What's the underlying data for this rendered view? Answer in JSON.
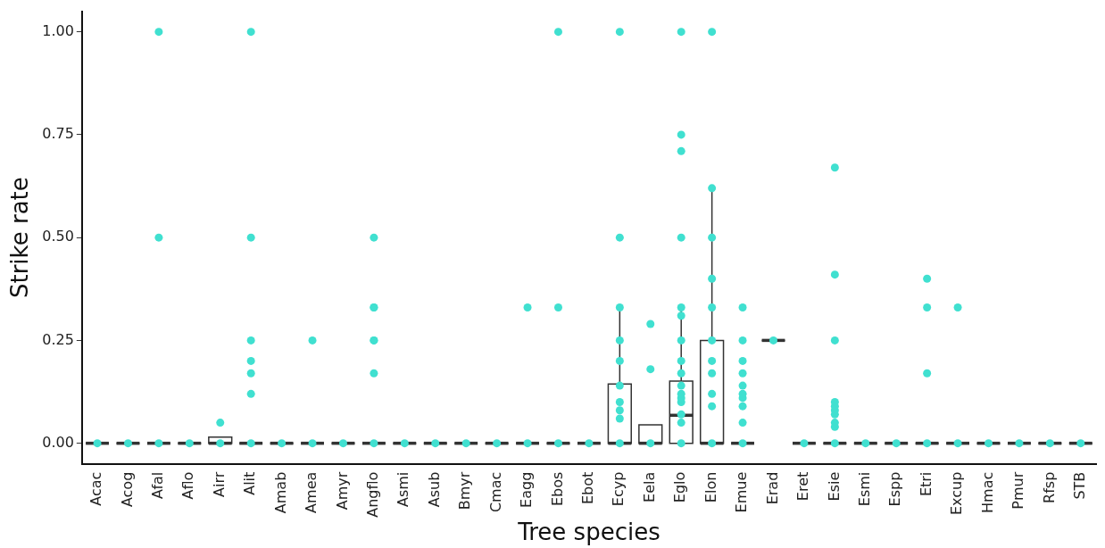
{
  "chart_data": {
    "type": "box",
    "xlabel": "Tree species",
    "ylabel": "Strike rate",
    "categories": [
      "Acac",
      "Acog",
      "Afal",
      "Aflo",
      "Airr",
      "Alit",
      "Amab",
      "Amea",
      "Amyr",
      "Angflo",
      "Asmi",
      "Asub",
      "Bmyr",
      "Cmac",
      "Eagg",
      "Ebos",
      "Ebot",
      "Ecyp",
      "Eela",
      "Eglo",
      "Elon",
      "Emue",
      "Erad",
      "Eret",
      "Esie",
      "Esmi",
      "Espp",
      "Etri",
      "Excup",
      "Hmac",
      "Pmur",
      "Rfsp",
      "STB"
    ],
    "boxes": [
      {
        "low": 0,
        "q1": 0,
        "median": 0,
        "q3": 0,
        "high": 0
      },
      {
        "low": 0,
        "q1": 0,
        "median": 0,
        "q3": 0,
        "high": 0
      },
      {
        "low": 0,
        "q1": 0,
        "median": 0,
        "q3": 0,
        "high": 0
      },
      {
        "low": 0,
        "q1": 0,
        "median": 0,
        "q3": 0,
        "high": 0
      },
      {
        "low": 0,
        "q1": 0,
        "median": 0,
        "q3": 0.015,
        "high": 0.015
      },
      {
        "low": 0,
        "q1": 0,
        "median": 0,
        "q3": 0,
        "high": 0
      },
      {
        "low": 0,
        "q1": 0,
        "median": 0,
        "q3": 0,
        "high": 0
      },
      {
        "low": 0,
        "q1": 0,
        "median": 0,
        "q3": 0,
        "high": 0
      },
      {
        "low": 0,
        "q1": 0,
        "median": 0,
        "q3": 0,
        "high": 0
      },
      {
        "low": 0,
        "q1": 0,
        "median": 0,
        "q3": 0,
        "high": 0
      },
      {
        "low": 0,
        "q1": 0,
        "median": 0,
        "q3": 0,
        "high": 0
      },
      {
        "low": 0,
        "q1": 0,
        "median": 0,
        "q3": 0,
        "high": 0
      },
      {
        "low": 0,
        "q1": 0,
        "median": 0,
        "q3": 0,
        "high": 0
      },
      {
        "low": 0,
        "q1": 0,
        "median": 0,
        "q3": 0,
        "high": 0
      },
      {
        "low": 0,
        "q1": 0,
        "median": 0,
        "q3": 0,
        "high": 0
      },
      {
        "low": 0,
        "q1": 0,
        "median": 0,
        "q3": 0,
        "high": 0
      },
      {
        "low": 0,
        "q1": 0,
        "median": 0,
        "q3": 0,
        "high": 0
      },
      {
        "low": 0,
        "q1": 0,
        "median": 0,
        "q3": 0.144,
        "high": 0.333
      },
      {
        "low": 0,
        "q1": 0,
        "median": 0,
        "q3": 0.045,
        "high": 0.045
      },
      {
        "low": 0,
        "q1": 0,
        "median": 0.068,
        "q3": 0.151,
        "high": 0.333
      },
      {
        "low": 0,
        "q1": 0,
        "median": 0,
        "q3": 0.25,
        "high": 0.625
      },
      {
        "low": 0,
        "q1": 0,
        "median": 0,
        "q3": 0,
        "high": 0
      },
      {
        "low": 0.25,
        "q1": 0.25,
        "median": 0.25,
        "q3": 0.25,
        "high": 0.25
      },
      {
        "low": 0,
        "q1": 0,
        "median": 0,
        "q3": 0,
        "high": 0
      },
      {
        "low": 0,
        "q1": 0,
        "median": 0,
        "q3": 0,
        "high": 0
      },
      {
        "low": 0,
        "q1": 0,
        "median": 0,
        "q3": 0,
        "high": 0
      },
      {
        "low": 0,
        "q1": 0,
        "median": 0,
        "q3": 0,
        "high": 0
      },
      {
        "low": 0,
        "q1": 0,
        "median": 0,
        "q3": 0,
        "high": 0
      },
      {
        "low": 0,
        "q1": 0,
        "median": 0,
        "q3": 0,
        "high": 0
      },
      {
        "low": 0,
        "q1": 0,
        "median": 0,
        "q3": 0,
        "high": 0
      },
      {
        "low": 0,
        "q1": 0,
        "median": 0,
        "q3": 0,
        "high": 0
      },
      {
        "low": 0,
        "q1": 0,
        "median": 0,
        "q3": 0,
        "high": 0
      },
      {
        "low": 0,
        "q1": 0,
        "median": 0,
        "q3": 0,
        "high": 0
      }
    ],
    "series": [
      {
        "type": "scatter",
        "color": "#40e0d0",
        "x": [
          "Acac",
          "Acog",
          "Afal",
          "Afal",
          "Afal",
          "Aflo",
          "Airr",
          "Airr",
          "Alit",
          "Alit",
          "Alit",
          "Alit",
          "Alit",
          "Alit",
          "Alit",
          "Amab",
          "Amea",
          "Amea",
          "Amyr",
          "Angflo",
          "Angflo",
          "Angflo",
          "Angflo",
          "Angflo",
          "Angflo",
          "Angflo",
          "Asmi",
          "Asub",
          "Bmyr",
          "Cmac",
          "Eagg",
          "Eagg",
          "Ebos",
          "Ebos",
          "Ebos",
          "Ebot",
          "Ecyp",
          "Ecyp",
          "Ecyp",
          "Ecyp",
          "Ecyp",
          "Ecyp",
          "Ecyp",
          "Ecyp",
          "Ecyp",
          "Ecyp",
          "Eela",
          "Eela",
          "Eela",
          "Eglo",
          "Eglo",
          "Eglo",
          "Eglo",
          "Eglo",
          "Eglo",
          "Eglo",
          "Eglo",
          "Eglo",
          "Eglo",
          "Eglo",
          "Eglo",
          "Eglo",
          "Eglo",
          "Eglo",
          "Eglo",
          "Elon",
          "Elon",
          "Elon",
          "Elon",
          "Elon",
          "Elon",
          "Elon",
          "Elon",
          "Elon",
          "Elon",
          "Elon",
          "Emue",
          "Emue",
          "Emue",
          "Emue",
          "Emue",
          "Emue",
          "Emue",
          "Emue",
          "Emue",
          "Emue",
          "Erad",
          "Eret",
          "Esie",
          "Esie",
          "Esie",
          "Esie",
          "Esie",
          "Esie",
          "Esie",
          "Esie",
          "Esie",
          "Esie",
          "Esmi",
          "Espp",
          "Etri",
          "Etri",
          "Etri",
          "Etri",
          "Excup",
          "Excup",
          "Hmac",
          "Pmur",
          "Rfsp",
          "STB"
        ],
        "values": [
          0,
          0,
          0,
          0.5,
          1,
          0,
          0,
          0.05,
          0,
          0.12,
          0.17,
          0.2,
          0.25,
          0.5,
          1,
          0,
          0,
          0.25,
          0,
          0,
          0.17,
          0.25,
          0.25,
          0.33,
          0.33,
          0.5,
          0,
          0,
          0,
          0,
          0,
          0.33,
          0,
          0.33,
          1,
          0,
          0,
          0.06,
          0.08,
          0.1,
          0.14,
          0.2,
          0.25,
          0.33,
          0.5,
          1,
          0,
          0.18,
          0.29,
          0,
          0.05,
          0.07,
          0.1,
          0.11,
          0.12,
          0.14,
          0.17,
          0.2,
          0.25,
          0.31,
          0.33,
          0.5,
          0.71,
          0.75,
          1,
          0,
          0.09,
          0.12,
          0.17,
          0.2,
          0.25,
          0.33,
          0.4,
          0.5,
          0.62,
          1,
          0,
          0.05,
          0.09,
          0.11,
          0.12,
          0.14,
          0.17,
          0.2,
          0.25,
          0.33,
          0.25,
          0,
          0,
          0.04,
          0.05,
          0.07,
          0.08,
          0.09,
          0.1,
          0.25,
          0.41,
          0.67,
          0,
          0,
          0,
          0.17,
          0.33,
          0.4,
          0,
          0.33,
          0,
          0,
          0,
          0
        ]
      }
    ],
    "ylim": [
      -0.05,
      1.05
    ],
    "yticks": [
      {
        "value": 0,
        "label": "0.00"
      },
      {
        "value": 0.25,
        "label": "0.25"
      },
      {
        "value": 0.5,
        "label": "0.50"
      },
      {
        "value": 0.75,
        "label": "0.75"
      },
      {
        "value": 1,
        "label": "1.00"
      }
    ],
    "color": "#333333",
    "marker": "circle",
    "grid": false,
    "legend": false
  }
}
